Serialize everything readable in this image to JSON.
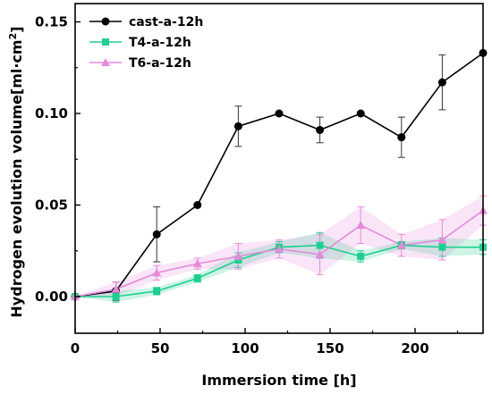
{
  "chart_data": {
    "type": "line",
    "xlabel": "Immersion time [h]",
    "ylabel": "Hydrogen evolution volume[ml·cm",
    "ylabel_sup": "2",
    "ylabel_end": "]",
    "xlim": [
      0,
      240
    ],
    "ylim": [
      -0.02,
      0.16
    ],
    "x_ticks": [
      0,
      50,
      100,
      150,
      200
    ],
    "x_tick_labels": [
      "0",
      "50",
      "100",
      "150",
      "200"
    ],
    "y_ticks": [
      0.0,
      0.05,
      0.1,
      0.15
    ],
    "y_tick_labels": [
      "0.00",
      "0.05",
      "0.10",
      "0.15"
    ],
    "grid": false,
    "legend_position": "top-left",
    "x": [
      0,
      24,
      48,
      72,
      96,
      120,
      144,
      168,
      192,
      216,
      240
    ],
    "series": [
      {
        "name": "cast-a-12h",
        "color": "#000000",
        "marker": "circle",
        "values": [
          0.0,
          0.003,
          0.034,
          0.05,
          0.093,
          0.1,
          0.091,
          0.1,
          0.087,
          0.117,
          0.133
        ],
        "errors": [
          0.0,
          0.005,
          0.015,
          0.0,
          0.011,
          0.0,
          0.007,
          0.0,
          0.011,
          0.015,
          0.0
        ]
      },
      {
        "name": "T4-a-12h",
        "color": "#1fcf8f",
        "marker": "square",
        "values": [
          0.0,
          0.0,
          0.003,
          0.01,
          0.02,
          0.027,
          0.028,
          0.022,
          0.028,
          0.027,
          0.027
        ],
        "errors": [
          0.0,
          0.003,
          0.002,
          0.002,
          0.004,
          0.003,
          0.007,
          0.003,
          0.002,
          0.005,
          0.004
        ]
      },
      {
        "name": "T6-a-12h",
        "color": "#e58ad9",
        "marker": "triangle",
        "values": [
          0.0,
          0.004,
          0.013,
          0.018,
          0.022,
          0.026,
          0.023,
          0.039,
          0.028,
          0.031,
          0.047
        ],
        "errors": [
          0.0,
          0.004,
          0.004,
          0.003,
          0.007,
          0.005,
          0.011,
          0.01,
          0.006,
          0.011,
          0.008
        ]
      }
    ]
  }
}
